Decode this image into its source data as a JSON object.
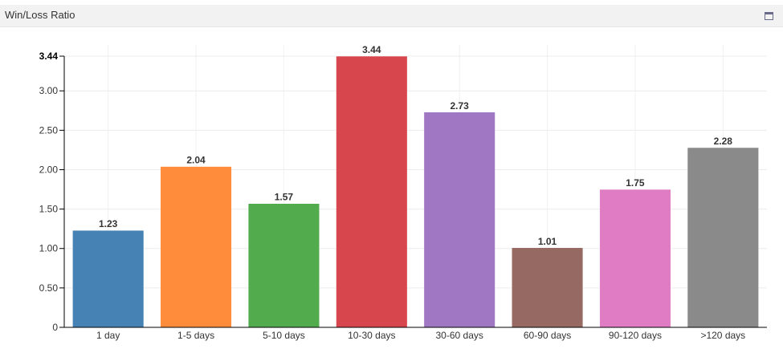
{
  "panel": {
    "title": "Win/Loss Ratio",
    "icon": "window-maximize-icon"
  },
  "chart_data": {
    "type": "bar",
    "title": "Win/Loss Ratio",
    "xlabel": "",
    "ylabel": "",
    "categories": [
      "1 day",
      "1-5 days",
      "5-10 days",
      "10-30 days",
      "30-60 days",
      "60-90 days",
      "90-120 days",
      ">120 days"
    ],
    "values": [
      1.23,
      2.04,
      1.57,
      3.44,
      2.73,
      1.01,
      1.75,
      2.28
    ],
    "data_labels": [
      "1.23",
      "2.04",
      "1.57",
      "3.44",
      "2.73",
      "1.01",
      "1.75",
      "2.28"
    ],
    "colors": [
      "#4682b4",
      "#ff8c3a",
      "#52ac4e",
      "#d6464c",
      "#a077c2",
      "#966a62",
      "#e07cc4",
      "#8a8a8a"
    ],
    "ylim": [
      0,
      3.44
    ],
    "yticks": [
      0,
      0.5,
      1.0,
      1.5,
      2.0,
      2.5,
      3.0,
      3.44
    ],
    "ytick_labels": [
      "0",
      "0.50",
      "1.00",
      "1.50",
      "2.00",
      "2.50",
      "3.00",
      "3.44"
    ],
    "grid": true,
    "legend": "none"
  }
}
